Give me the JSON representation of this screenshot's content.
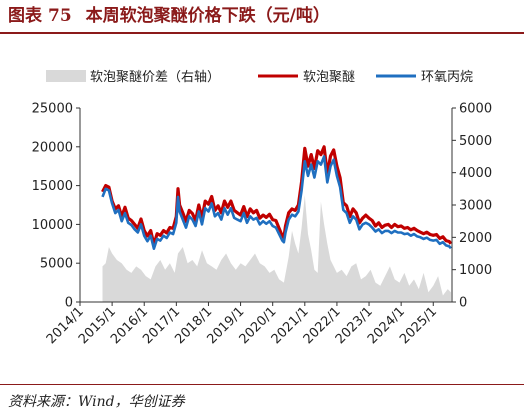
{
  "header": {
    "label": "图表",
    "number": "75",
    "title": "本周软泡聚醚价格下跌（元/吨）"
  },
  "source_note": "资料来源：Wind，华创证券",
  "colors": {
    "title": "#8b1a1a",
    "spread_fill": "#d9d9d9",
    "polyether": "#c00000",
    "propylene_oxide": "#1f6fc0"
  },
  "chart_data": {
    "type": "line",
    "x_tick_labels": [
      "2014/1",
      "2015/1",
      "2016/1",
      "2017/1",
      "2018/1",
      "2019/1",
      "2020/1",
      "2021/1",
      "2022/1",
      "2023/1",
      "2024/1",
      "2025/1"
    ],
    "xlim": [
      "2014/1",
      "2025/8"
    ],
    "left_axis": {
      "ylim": [
        0,
        25000
      ],
      "ticks": [
        "0",
        "5000",
        "10000",
        "15000",
        "20000",
        "25000"
      ]
    },
    "right_axis": {
      "ylim": [
        0,
        6000
      ],
      "ticks": [
        "0",
        "1000",
        "2000",
        "3000",
        "4000",
        "5000",
        "6000"
      ]
    },
    "legend_position": "top",
    "grid": false,
    "series": [
      {
        "name": "软泡聚醚价差（右轴）",
        "type": "area",
        "axis": "right",
        "x": [
          2014.7,
          2014.8,
          2014.9,
          2015.0,
          2015.15,
          2015.3,
          2015.45,
          2015.6,
          2015.75,
          2015.9,
          2016.05,
          2016.2,
          2016.35,
          2016.5,
          2016.65,
          2016.8,
          2016.95,
          2017.05,
          2017.2,
          2017.35,
          2017.5,
          2017.65,
          2017.8,
          2017.95,
          2018.1,
          2018.25,
          2018.4,
          2018.55,
          2018.7,
          2018.85,
          2019.0,
          2019.15,
          2019.3,
          2019.45,
          2019.6,
          2019.75,
          2019.9,
          2020.05,
          2020.2,
          2020.35,
          2020.5,
          2020.6,
          2020.7,
          2020.8,
          2020.9,
          2021.0,
          2021.1,
          2021.2,
          2021.3,
          2021.4,
          2021.5,
          2021.6,
          2021.7,
          2021.8,
          2021.9,
          2022.0,
          2022.15,
          2022.3,
          2022.45,
          2022.6,
          2022.75,
          2022.9,
          2023.05,
          2023.2,
          2023.35,
          2023.5,
          2023.65,
          2023.8,
          2023.95,
          2024.1,
          2024.25,
          2024.4,
          2024.55,
          2024.7,
          2024.85,
          2025.0,
          2025.15,
          2025.3,
          2025.45,
          2025.55
        ],
        "values": [
          1100,
          1200,
          1700,
          1500,
          1300,
          1200,
          1000,
          900,
          1100,
          1000,
          800,
          700,
          1100,
          1300,
          1000,
          1200,
          900,
          1500,
          1700,
          1200,
          1300,
          1100,
          1600,
          1200,
          1100,
          1000,
          1300,
          1500,
          1200,
          1000,
          1200,
          1100,
          1300,
          1500,
          1200,
          1100,
          900,
          1000,
          700,
          600,
          1400,
          2200,
          1800,
          1500,
          2300,
          3300,
          2100,
          1600,
          1000,
          900,
          3100,
          2400,
          1800,
          1300,
          1100,
          900,
          1000,
          800,
          1100,
          1200,
          700,
          800,
          1000,
          600,
          500,
          800,
          1100,
          700,
          600,
          900,
          500,
          700,
          400,
          900,
          300,
          500,
          800,
          200,
          400,
          300
        ]
      },
      {
        "name": "软泡聚醚",
        "type": "line",
        "axis": "left",
        "x": [
          2014.7,
          2014.8,
          2014.9,
          2015.0,
          2015.1,
          2015.2,
          2015.3,
          2015.4,
          2015.5,
          2015.6,
          2015.7,
          2015.8,
          2015.9,
          2016.0,
          2016.1,
          2016.2,
          2016.3,
          2016.4,
          2016.5,
          2016.6,
          2016.7,
          2016.8,
          2016.9,
          2017.0,
          2017.05,
          2017.1,
          2017.2,
          2017.3,
          2017.4,
          2017.5,
          2017.6,
          2017.7,
          2017.8,
          2017.9,
          2018.0,
          2018.1,
          2018.2,
          2018.3,
          2018.4,
          2018.5,
          2018.6,
          2018.7,
          2018.8,
          2018.9,
          2019.0,
          2019.1,
          2019.2,
          2019.3,
          2019.4,
          2019.5,
          2019.6,
          2019.7,
          2019.8,
          2019.9,
          2020.0,
          2020.1,
          2020.2,
          2020.3,
          2020.35,
          2020.4,
          2020.5,
          2020.6,
          2020.7,
          2020.8,
          2020.9,
          2021.0,
          2021.1,
          2021.2,
          2021.3,
          2021.4,
          2021.5,
          2021.6,
          2021.7,
          2021.8,
          2021.9,
          2022.0,
          2022.1,
          2022.2,
          2022.3,
          2022.4,
          2022.5,
          2022.6,
          2022.7,
          2022.8,
          2022.9,
          2023.0,
          2023.1,
          2023.2,
          2023.3,
          2023.4,
          2023.5,
          2023.6,
          2023.7,
          2023.8,
          2023.9,
          2024.0,
          2024.1,
          2024.2,
          2024.3,
          2024.4,
          2024.5,
          2024.6,
          2024.7,
          2024.8,
          2024.9,
          2025.0,
          2025.1,
          2025.2,
          2025.3,
          2025.4,
          2025.5,
          2025.55
        ],
        "values": [
          14200,
          15000,
          14800,
          13000,
          12000,
          12400,
          11000,
          12200,
          10800,
          10500,
          10000,
          9500,
          10700,
          9200,
          8500,
          9200,
          7400,
          8800,
          8600,
          9200,
          8900,
          9600,
          9500,
          11000,
          14600,
          12500,
          11500,
          10400,
          11800,
          11400,
          10500,
          12500,
          10800,
          13000,
          12600,
          13600,
          11800,
          12400,
          11500,
          13000,
          12200,
          13000,
          11800,
          11500,
          11200,
          12300,
          11000,
          12000,
          11500,
          11800,
          10800,
          11200,
          10900,
          11300,
          10600,
          10500,
          9500,
          8500,
          8300,
          9800,
          11500,
          12000,
          11800,
          12500,
          15500,
          19800,
          17500,
          19000,
          17200,
          19500,
          19000,
          20000,
          16500,
          18800,
          19600,
          17500,
          16000,
          12800,
          12400,
          11000,
          12000,
          11500,
          10200,
          10800,
          11200,
          10800,
          10500,
          9800,
          10200,
          9600,
          9900,
          10000,
          9600,
          10000,
          9700,
          9800,
          9500,
          9600,
          9300,
          9500,
          9200,
          9000,
          8800,
          9000,
          8700,
          8600,
          8700,
          8200,
          8400,
          7900,
          7800,
          7500
        ]
      },
      {
        "name": "环氧丙烷",
        "type": "line",
        "axis": "right",
        "x": [
          2014.7,
          2014.8,
          2014.9,
          2015.0,
          2015.1,
          2015.2,
          2015.3,
          2015.4,
          2015.5,
          2015.6,
          2015.7,
          2015.8,
          2015.9,
          2016.0,
          2016.1,
          2016.2,
          2016.3,
          2016.4,
          2016.5,
          2016.6,
          2016.7,
          2016.8,
          2016.9,
          2017.0,
          2017.05,
          2017.1,
          2017.2,
          2017.3,
          2017.4,
          2017.5,
          2017.6,
          2017.7,
          2017.8,
          2017.9,
          2018.0,
          2018.1,
          2018.2,
          2018.3,
          2018.4,
          2018.5,
          2018.6,
          2018.7,
          2018.8,
          2018.9,
          2019.0,
          2019.1,
          2019.2,
          2019.3,
          2019.4,
          2019.5,
          2019.6,
          2019.7,
          2019.8,
          2019.9,
          2020.0,
          2020.1,
          2020.2,
          2020.3,
          2020.35,
          2020.4,
          2020.5,
          2020.6,
          2020.7,
          2020.8,
          2020.9,
          2021.0,
          2021.1,
          2021.2,
          2021.3,
          2021.4,
          2021.5,
          2021.6,
          2021.7,
          2021.8,
          2021.9,
          2022.0,
          2022.1,
          2022.2,
          2022.3,
          2022.4,
          2022.5,
          2022.6,
          2022.7,
          2022.8,
          2022.9,
          2023.0,
          2023.1,
          2023.2,
          2023.3,
          2023.4,
          2023.5,
          2023.6,
          2023.7,
          2023.8,
          2023.9,
          2024.0,
          2024.1,
          2024.2,
          2024.3,
          2024.4,
          2024.5,
          2024.6,
          2024.7,
          2024.8,
          2024.9,
          2025.0,
          2025.1,
          2025.2,
          2025.3,
          2025.4,
          2025.5,
          2025.55
        ],
        "values": [
          3250,
          3500,
          3450,
          3050,
          2750,
          2850,
          2500,
          2750,
          2450,
          2380,
          2250,
          2150,
          2400,
          2050,
          1880,
          2050,
          1650,
          1950,
          1900,
          2050,
          1980,
          2150,
          2100,
          2450,
          3250,
          2800,
          2550,
          2300,
          2650,
          2550,
          2350,
          2800,
          2400,
          2900,
          2800,
          3050,
          2650,
          2750,
          2550,
          2900,
          2700,
          2900,
          2600,
          2550,
          2500,
          2750,
          2450,
          2650,
          2550,
          2600,
          2400,
          2500,
          2420,
          2500,
          2350,
          2300,
          2100,
          1900,
          1850,
          2150,
          2550,
          2700,
          2650,
          2800,
          3450,
          4350,
          3900,
          4250,
          3850,
          4350,
          4250,
          4500,
          3700,
          4200,
          4400,
          3900,
          3550,
          2850,
          2750,
          2450,
          2650,
          2550,
          2250,
          2400,
          2450,
          2400,
          2300,
          2180,
          2250,
          2130,
          2200,
          2200,
          2130,
          2200,
          2150,
          2150,
          2100,
          2120,
          2050,
          2100,
          2030,
          2000,
          1950,
          1990,
          1920,
          1900,
          1920,
          1800,
          1850,
          1750,
          1720,
          1660
        ]
      }
    ]
  }
}
